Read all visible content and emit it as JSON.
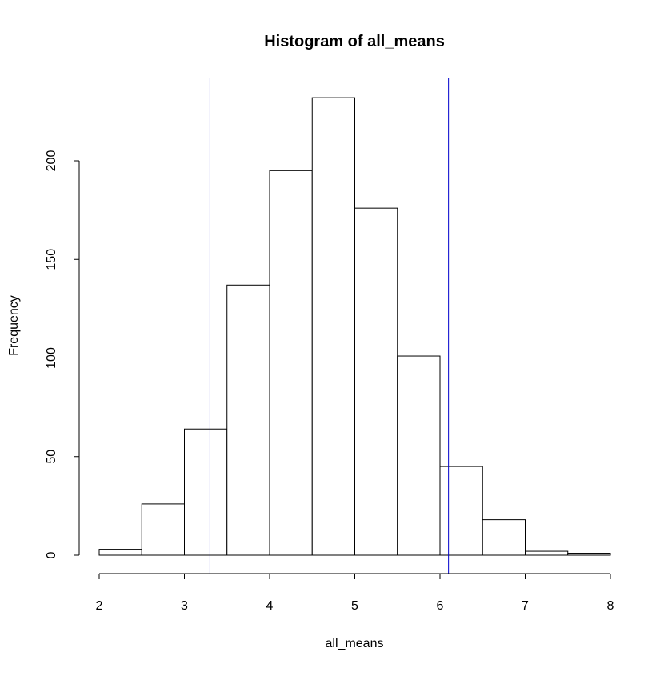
{
  "chart_data": {
    "type": "histogram",
    "title": "Histogram of all_means",
    "xlabel": "all_means",
    "ylabel": "Frequency",
    "bins": [
      {
        "start": 2.0,
        "end": 2.5,
        "count": 3
      },
      {
        "start": 2.5,
        "end": 3.0,
        "count": 26
      },
      {
        "start": 3.0,
        "end": 3.5,
        "count": 64
      },
      {
        "start": 3.5,
        "end": 4.0,
        "count": 137
      },
      {
        "start": 4.0,
        "end": 4.5,
        "count": 195
      },
      {
        "start": 4.5,
        "end": 5.0,
        "count": 232
      },
      {
        "start": 5.0,
        "end": 5.5,
        "count": 176
      },
      {
        "start": 5.5,
        "end": 6.0,
        "count": 101
      },
      {
        "start": 6.0,
        "end": 6.5,
        "count": 45
      },
      {
        "start": 6.5,
        "end": 7.0,
        "count": 18
      },
      {
        "start": 7.0,
        "end": 7.5,
        "count": 2
      },
      {
        "start": 7.5,
        "end": 8.0,
        "count": 1
      }
    ],
    "xlim": [
      2,
      8
    ],
    "ylim": [
      0,
      240
    ],
    "x_ticks": [
      2,
      3,
      4,
      5,
      6,
      7,
      8
    ],
    "y_ticks": [
      0,
      50,
      100,
      150,
      200
    ],
    "vlines": [
      {
        "x": 3.3,
        "color": "#0000cc"
      },
      {
        "x": 6.1,
        "color": "#0000cc"
      }
    ],
    "grid": false,
    "bar_fill": "#ffffff",
    "bar_stroke": "#000000"
  }
}
